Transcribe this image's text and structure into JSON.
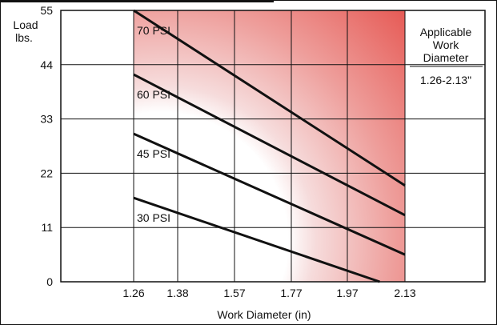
{
  "chart_data": {
    "type": "line",
    "xlabel": "Work Diameter (in)",
    "ylabel": [
      "Load",
      "lbs."
    ],
    "x_ticks": [
      "1.26",
      "1.38",
      "1.57",
      "1.77",
      "1.97",
      "2.13"
    ],
    "y_ticks": [
      0,
      11,
      22,
      33,
      44,
      55
    ],
    "ylim": [
      0,
      55
    ],
    "x_range": [
      1.26,
      2.13
    ],
    "grid": true,
    "shaded_region": {
      "x_from": 1.26,
      "x_to": 2.13,
      "color": "#e8605a"
    },
    "series": [
      {
        "name": "30 PSI",
        "x": [
          1.26,
          2.06
        ],
        "y": [
          17,
          0
        ]
      },
      {
        "name": "45 PSI",
        "x": [
          1.26,
          2.13
        ],
        "y": [
          30,
          5.5
        ]
      },
      {
        "name": "60 PSI",
        "x": [
          1.26,
          2.13
        ],
        "y": [
          42,
          13.5
        ]
      },
      {
        "name": "70 PSI",
        "x": [
          1.26,
          2.13
        ],
        "y": [
          55,
          19.5
        ]
      }
    ],
    "annotation": {
      "title_lines": [
        "Applicable",
        "Work",
        "Diameter"
      ],
      "range": "1.26-2.13\""
    },
    "colors": {
      "line": "#111111",
      "grid": "#111111",
      "shade": "#e8605a"
    }
  }
}
